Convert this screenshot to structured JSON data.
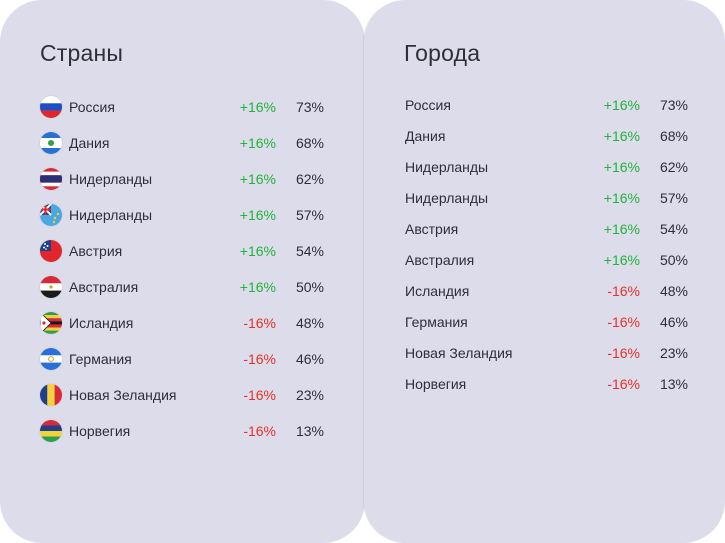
{
  "countries": {
    "title": "Страны",
    "rows": [
      {
        "name": "Россия",
        "delta": "+16%",
        "trend": "up",
        "pct": "73%",
        "flag": "russia-flag-icon"
      },
      {
        "name": "Дания",
        "delta": "+16%",
        "trend": "up",
        "pct": "68%",
        "flag": "blue-white-flag-icon"
      },
      {
        "name": "Нидерланды",
        "delta": "+16%",
        "trend": "up",
        "pct": "62%",
        "flag": "thailand-flag-icon"
      },
      {
        "name": "Нидерланды",
        "delta": "+16%",
        "trend": "up",
        "pct": "57%",
        "flag": "tuvalu-flag-icon"
      },
      {
        "name": "Австрия",
        "delta": "+16%",
        "trend": "up",
        "pct": "54%",
        "flag": "samoa-flag-icon"
      },
      {
        "name": "Австралия",
        "delta": "+16%",
        "trend": "up",
        "pct": "50%",
        "flag": "egypt-flag-icon"
      },
      {
        "name": "Исландия",
        "delta": "-16%",
        "trend": "down",
        "pct": "48%",
        "flag": "zimbabwe-flag-icon"
      },
      {
        "name": "Германия",
        "delta": "-16%",
        "trend": "down",
        "pct": "46%",
        "flag": "nicaragua-flag-icon"
      },
      {
        "name": "Новая Зеландия",
        "delta": "-16%",
        "trend": "down",
        "pct": "23%",
        "flag": "romania-flag-icon"
      },
      {
        "name": "Норвегия",
        "delta": "-16%",
        "trend": "down",
        "pct": "13%",
        "flag": "mauritius-flag-icon"
      }
    ]
  },
  "cities": {
    "title": "Города",
    "rows": [
      {
        "name": "Россия",
        "delta": "+16%",
        "trend": "up",
        "pct": "73%"
      },
      {
        "name": "Дания",
        "delta": "+16%",
        "trend": "up",
        "pct": "68%"
      },
      {
        "name": "Нидерланды",
        "delta": "+16%",
        "trend": "up",
        "pct": "62%"
      },
      {
        "name": "Нидерланды",
        "delta": "+16%",
        "trend": "up",
        "pct": "57%"
      },
      {
        "name": "Австрия",
        "delta": "+16%",
        "trend": "up",
        "pct": "54%"
      },
      {
        "name": "Австралия",
        "delta": "+16%",
        "trend": "up",
        "pct": "50%"
      },
      {
        "name": "Исландия",
        "delta": "-16%",
        "trend": "down",
        "pct": "48%"
      },
      {
        "name": "Германия",
        "delta": "-16%",
        "trend": "down",
        "pct": "46%"
      },
      {
        "name": "Новая Зеландия",
        "delta": "-16%",
        "trend": "down",
        "pct": "23%"
      },
      {
        "name": "Норвегия",
        "delta": "-16%",
        "trend": "down",
        "pct": "13%"
      }
    ]
  },
  "colors": {
    "card_bg": "#dcdcea",
    "text": "#2f2f3a",
    "positive": "#22b33a",
    "negative": "#e8302a"
  }
}
